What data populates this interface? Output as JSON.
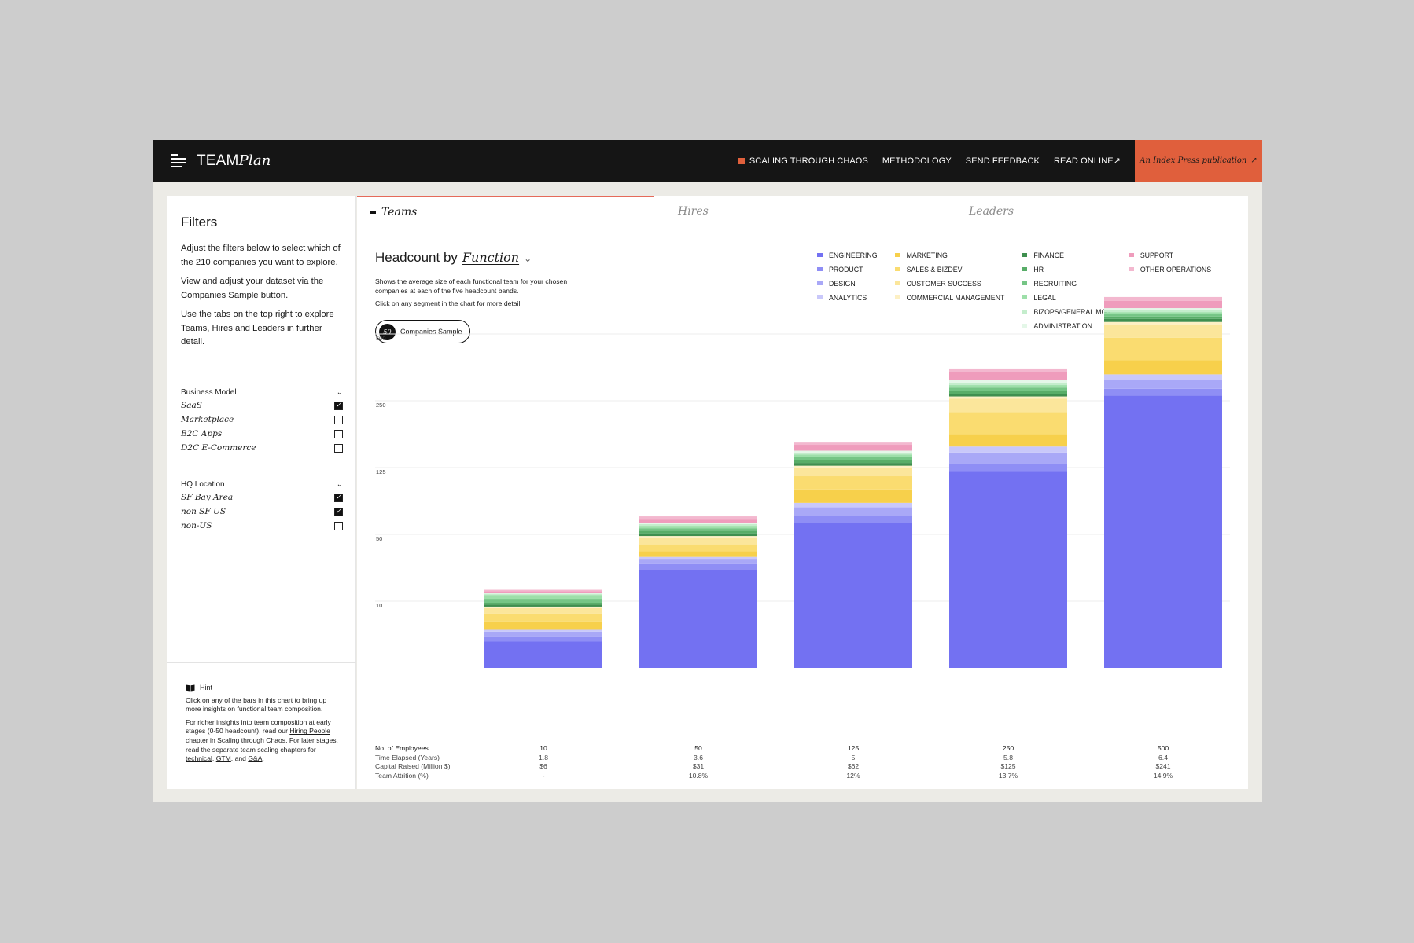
{
  "app": {
    "logo_team": "TEAM",
    "logo_plan": "Plan",
    "nav": [
      "SCALING THROUGH CHAOS",
      "METHODOLOGY",
      "SEND FEEDBACK",
      "READ ONLINE↗"
    ],
    "publication": "An Index Press publication",
    "publication_icon": "↗"
  },
  "sidebar": {
    "title": "Filters",
    "paragraphs": [
      "Adjust the filters below to select which of the 210 companies you want to explore.",
      "View and adjust your dataset via the Companies Sample button.",
      "Use the tabs on the top right to explore Teams, Hires and Leaders in further detail."
    ],
    "groups": [
      {
        "title": "Business Model",
        "items": [
          {
            "label": "SaaS",
            "checked": true
          },
          {
            "label": "Marketplace",
            "checked": false
          },
          {
            "label": "B2C Apps",
            "checked": false
          },
          {
            "label": "D2C E-Commerce",
            "checked": false
          }
        ]
      },
      {
        "title": "HQ Location",
        "items": [
          {
            "label": "SF Bay Area",
            "checked": true
          },
          {
            "label": "non SF US",
            "checked": true
          },
          {
            "label": "non-US",
            "checked": false
          }
        ]
      }
    ],
    "hint": {
      "title": "Hint",
      "p1": "Click on any of the bars in this chart to bring up more insights on functional team composition.",
      "p2_a": "For richer insights into team composition at early stages (0-50 headcount), read our ",
      "p2_link1": "Hiring People",
      "p2_b": " chapter in Scaling through Chaos. For later stages, read the separate team scaling chapters for ",
      "p2_link2": "technical",
      "p2_c": ", ",
      "p2_link3": "GTM",
      "p2_d": ", and ",
      "p2_link4": "G&A",
      "p2_e": "."
    }
  },
  "tabs": [
    "Teams",
    "Hires",
    "Leaders"
  ],
  "chart_header": {
    "title_prefix": "Headcount by",
    "title_fn": "Function",
    "description": "Shows the average size of each functional team for your chosen companies at each of the five headcount bands.",
    "click_note": "Click on any segment in the chart for more detail.",
    "sample_badge": "50",
    "sample_label": "Companies Sample"
  },
  "chart_data": {
    "type": "bar",
    "stacked": true,
    "y_ticks": [
      "500",
      "250",
      "125",
      "50",
      "10"
    ],
    "categories": [
      "10",
      "50",
      "125",
      "250",
      "500"
    ],
    "legend_columns": [
      [
        {
          "name": "Engineering",
          "color": "#7371f2"
        },
        {
          "name": "Product",
          "color": "#8f8ef5"
        },
        {
          "name": "Design",
          "color": "#a9a8f7"
        },
        {
          "name": "Analytics",
          "color": "#c9c8fa"
        }
      ],
      [
        {
          "name": "Marketing",
          "color": "#f7d04b"
        },
        {
          "name": "Sales & BizDev",
          "color": "#fadc70"
        },
        {
          "name": "Customer Success",
          "color": "#fbe69b"
        },
        {
          "name": "Commercial Management",
          "color": "#fdf0c4"
        }
      ],
      [
        {
          "name": "Finance",
          "color": "#3f8f4f"
        },
        {
          "name": "HR",
          "color": "#58ad68"
        },
        {
          "name": "Recruiting",
          "color": "#75c585"
        },
        {
          "name": "Legal",
          "color": "#9ddfa9"
        },
        {
          "name": "BizOps/General MGT",
          "color": "#c4edcc"
        },
        {
          "name": "Administration",
          "color": "#e4f7e8"
        }
      ],
      [
        {
          "name": "Support",
          "color": "#ef9cbc"
        },
        {
          "name": "Other Operations",
          "color": "#f3b8cf"
        }
      ]
    ],
    "segment_order": [
      "Engineering",
      "Product",
      "Design",
      "Analytics",
      "Marketing",
      "Sales & BizDev",
      "Customer Success",
      "Commercial Management",
      "Finance",
      "HR",
      "Recruiting",
      "Legal",
      "BizOps/General MGT",
      "Administration",
      "Support",
      "Other Operations"
    ],
    "series_values": {
      "10": [
        4.4,
        0.8,
        0.8,
        0.3,
        1.4,
        1.3,
        0.9,
        0.3,
        0.5,
        0.5,
        1.1,
        1.2,
        0.4,
        0.3,
        0.6,
        0.5
      ],
      "50": [
        25,
        3.5,
        3.8,
        1.5,
        5,
        7,
        6,
        1.5,
        2,
        2,
        2,
        2,
        1.5,
        1,
        3,
        3
      ],
      "125": [
        64,
        6,
        9,
        5,
        17,
        20,
        12,
        3,
        4,
        4,
        5,
        4,
        3,
        3,
        10,
        4
      ],
      "250": [
        129,
        10,
        17,
        10,
        23,
        48,
        36,
        6,
        8,
        9,
        10,
        8,
        8,
        8,
        30,
        13
      ],
      "500": [
        282,
        20,
        29,
        20,
        55,
        112,
        95,
        24,
        23,
        18,
        16,
        17,
        15,
        15,
        55,
        28
      ]
    }
  },
  "stats": {
    "labels": [
      "No. of Employees",
      "Time Elapsed (Years)",
      "Capital Raised (Million $)",
      "Team Attrition (%)"
    ],
    "columns": [
      [
        "10",
        "1.8",
        "$6",
        "-"
      ],
      [
        "50",
        "3.6",
        "$31",
        "10.8%"
      ],
      [
        "125",
        "5",
        "$62",
        "12%"
      ],
      [
        "250",
        "5.8",
        "$125",
        "13.7%"
      ],
      [
        "500",
        "6.4",
        "$241",
        "14.9%"
      ]
    ]
  }
}
